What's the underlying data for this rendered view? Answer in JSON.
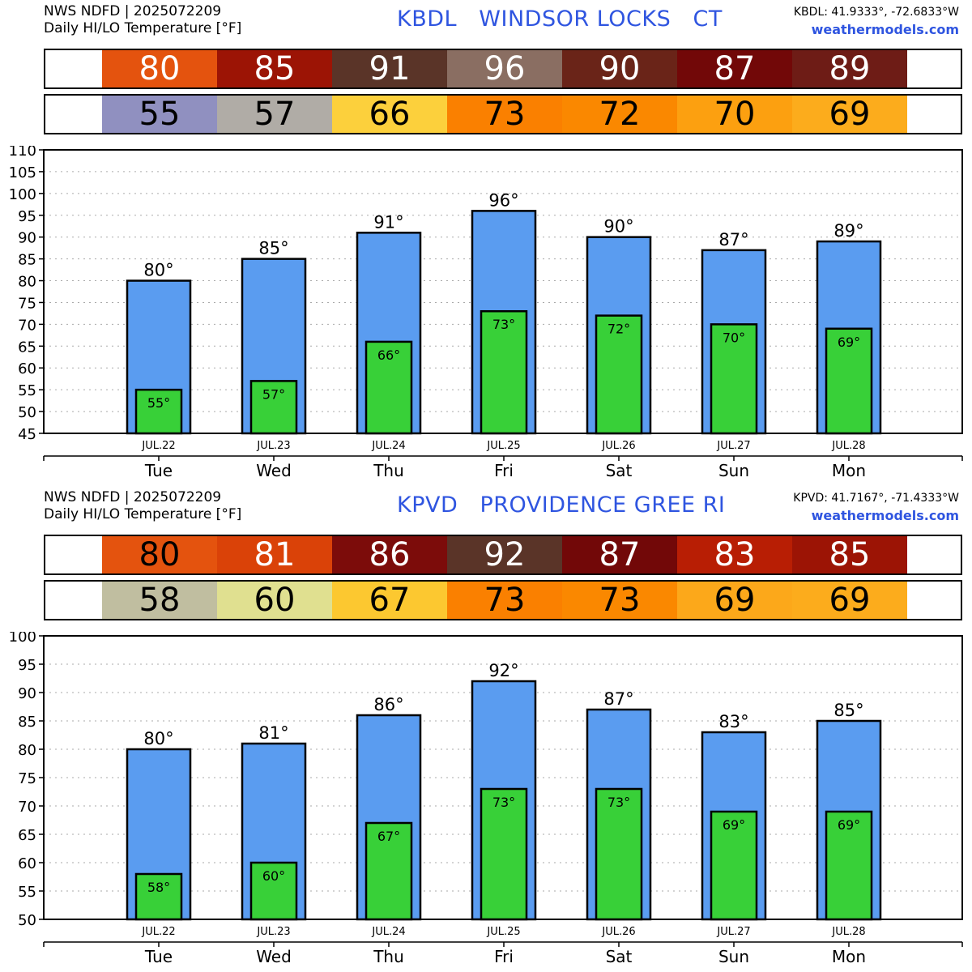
{
  "panels": [
    {
      "header": {
        "line1": "NWS NDFD | 2025072209",
        "line2": "Daily HI/LO Temperature [°F]",
        "title": "KBDL   WINDSOR LOCKS   CT",
        "coords": "KBDL: 41.9333°, -72.6833°W",
        "site": "weathermodels.com"
      },
      "hi_strip": [
        {
          "text": "80",
          "bg": "#e4530e",
          "fg": "#ffffff"
        },
        {
          "text": "85",
          "bg": "#9c1405",
          "fg": "#ffffff"
        },
        {
          "text": "91",
          "bg": "#5a3428",
          "fg": "#ffffff"
        },
        {
          "text": "96",
          "bg": "#8a6e62",
          "fg": "#ffffff"
        },
        {
          "text": "90",
          "bg": "#6a2418",
          "fg": "#ffffff"
        },
        {
          "text": "87",
          "bg": "#720808",
          "fg": "#ffffff"
        },
        {
          "text": "89",
          "bg": "#6e1c16",
          "fg": "#ffffff"
        }
      ],
      "lo_strip": [
        {
          "text": "55",
          "bg": "#9090c0",
          "fg": "#000000"
        },
        {
          "text": "57",
          "bg": "#b0aca6",
          "fg": "#000000"
        },
        {
          "text": "66",
          "bg": "#fcd03c",
          "fg": "#000000"
        },
        {
          "text": "73",
          "bg": "#fa8000",
          "fg": "#000000"
        },
        {
          "text": "72",
          "bg": "#fa8800",
          "fg": "#000000"
        },
        {
          "text": "70",
          "bg": "#fca010",
          "fg": "#000000"
        },
        {
          "text": "69",
          "bg": "#fcac1c",
          "fg": "#000000"
        }
      ],
      "chart_data": {
        "type": "bar",
        "categories": [
          "Tue",
          "Wed",
          "Thu",
          "Fri",
          "Sat",
          "Sun",
          "Mon"
        ],
        "dates": [
          "JUL.22",
          "JUL.23",
          "JUL.24",
          "JUL.25",
          "JUL.26",
          "JUL.27",
          "JUL.28"
        ],
        "series": [
          {
            "values": [
              80,
              85,
              91,
              96,
              90,
              87,
              89
            ],
            "color": "#5a9cf0"
          },
          {
            "values": [
              55,
              57,
              66,
              73,
              72,
              70,
              69
            ],
            "color": "#38d038"
          }
        ],
        "hi_labels": [
          "80°",
          "85°",
          "91°",
          "96°",
          "90°",
          "87°",
          "89°"
        ],
        "lo_labels": [
          "55°",
          "57°",
          "66°",
          "73°",
          "72°",
          "70°",
          "69°"
        ],
        "ylim": [
          45,
          110
        ],
        "yticks": [
          "45",
          "50",
          "55",
          "60",
          "65",
          "70",
          "75",
          "80",
          "85",
          "90",
          "95",
          "100",
          "105",
          "110"
        ],
        "grid": true
      }
    },
    {
      "header": {
        "line1": "NWS NDFD | 2025072209",
        "line2": "Daily HI/LO Temperature [°F]",
        "title": "KPVD   PROVIDENCE GREE RI",
        "coords": "KPVD: 41.7167°, -71.4333°W",
        "site": "weathermodels.com"
      },
      "hi_strip": [
        {
          "text": "80",
          "bg": "#e4530e",
          "fg": "#000000"
        },
        {
          "text": "81",
          "bg": "#da4208",
          "fg": "#ffffff"
        },
        {
          "text": "86",
          "bg": "#7c0c0a",
          "fg": "#ffffff"
        },
        {
          "text": "92",
          "bg": "#5a3428",
          "fg": "#ffffff"
        },
        {
          "text": "87",
          "bg": "#720808",
          "fg": "#ffffff"
        },
        {
          "text": "83",
          "bg": "#b81e04",
          "fg": "#ffffff"
        },
        {
          "text": "85",
          "bg": "#9c1405",
          "fg": "#ffffff"
        }
      ],
      "lo_strip": [
        {
          "text": "58",
          "bg": "#c0bea0",
          "fg": "#000000"
        },
        {
          "text": "60",
          "bg": "#e0e090",
          "fg": "#000000"
        },
        {
          "text": "67",
          "bg": "#fcc830",
          "fg": "#000000"
        },
        {
          "text": "73",
          "bg": "#fa8000",
          "fg": "#000000"
        },
        {
          "text": "73",
          "bg": "#fa8800",
          "fg": "#000000"
        },
        {
          "text": "69",
          "bg": "#fca81a",
          "fg": "#000000"
        },
        {
          "text": "69",
          "bg": "#fcac1c",
          "fg": "#000000"
        }
      ],
      "chart_data": {
        "type": "bar",
        "categories": [
          "Tue",
          "Wed",
          "Thu",
          "Fri",
          "Sat",
          "Sun",
          "Mon"
        ],
        "dates": [
          "JUL.22",
          "JUL.23",
          "JUL.24",
          "JUL.25",
          "JUL.26",
          "JUL.27",
          "JUL.28"
        ],
        "series": [
          {
            "values": [
              80,
              81,
              86,
              92,
              87,
              83,
              85
            ],
            "color": "#5a9cf0"
          },
          {
            "values": [
              58,
              60,
              67,
              73,
              73,
              69,
              69
            ],
            "color": "#38d038"
          }
        ],
        "hi_labels": [
          "80°",
          "81°",
          "86°",
          "92°",
          "87°",
          "83°",
          "85°"
        ],
        "lo_labels": [
          "58°",
          "60°",
          "67°",
          "73°",
          "73°",
          "69°",
          "69°"
        ],
        "ylim": [
          50,
          100
        ],
        "yticks": [
          "50",
          "55",
          "60",
          "65",
          "70",
          "75",
          "80",
          "85",
          "90",
          "95",
          "100"
        ],
        "grid": true
      }
    }
  ]
}
